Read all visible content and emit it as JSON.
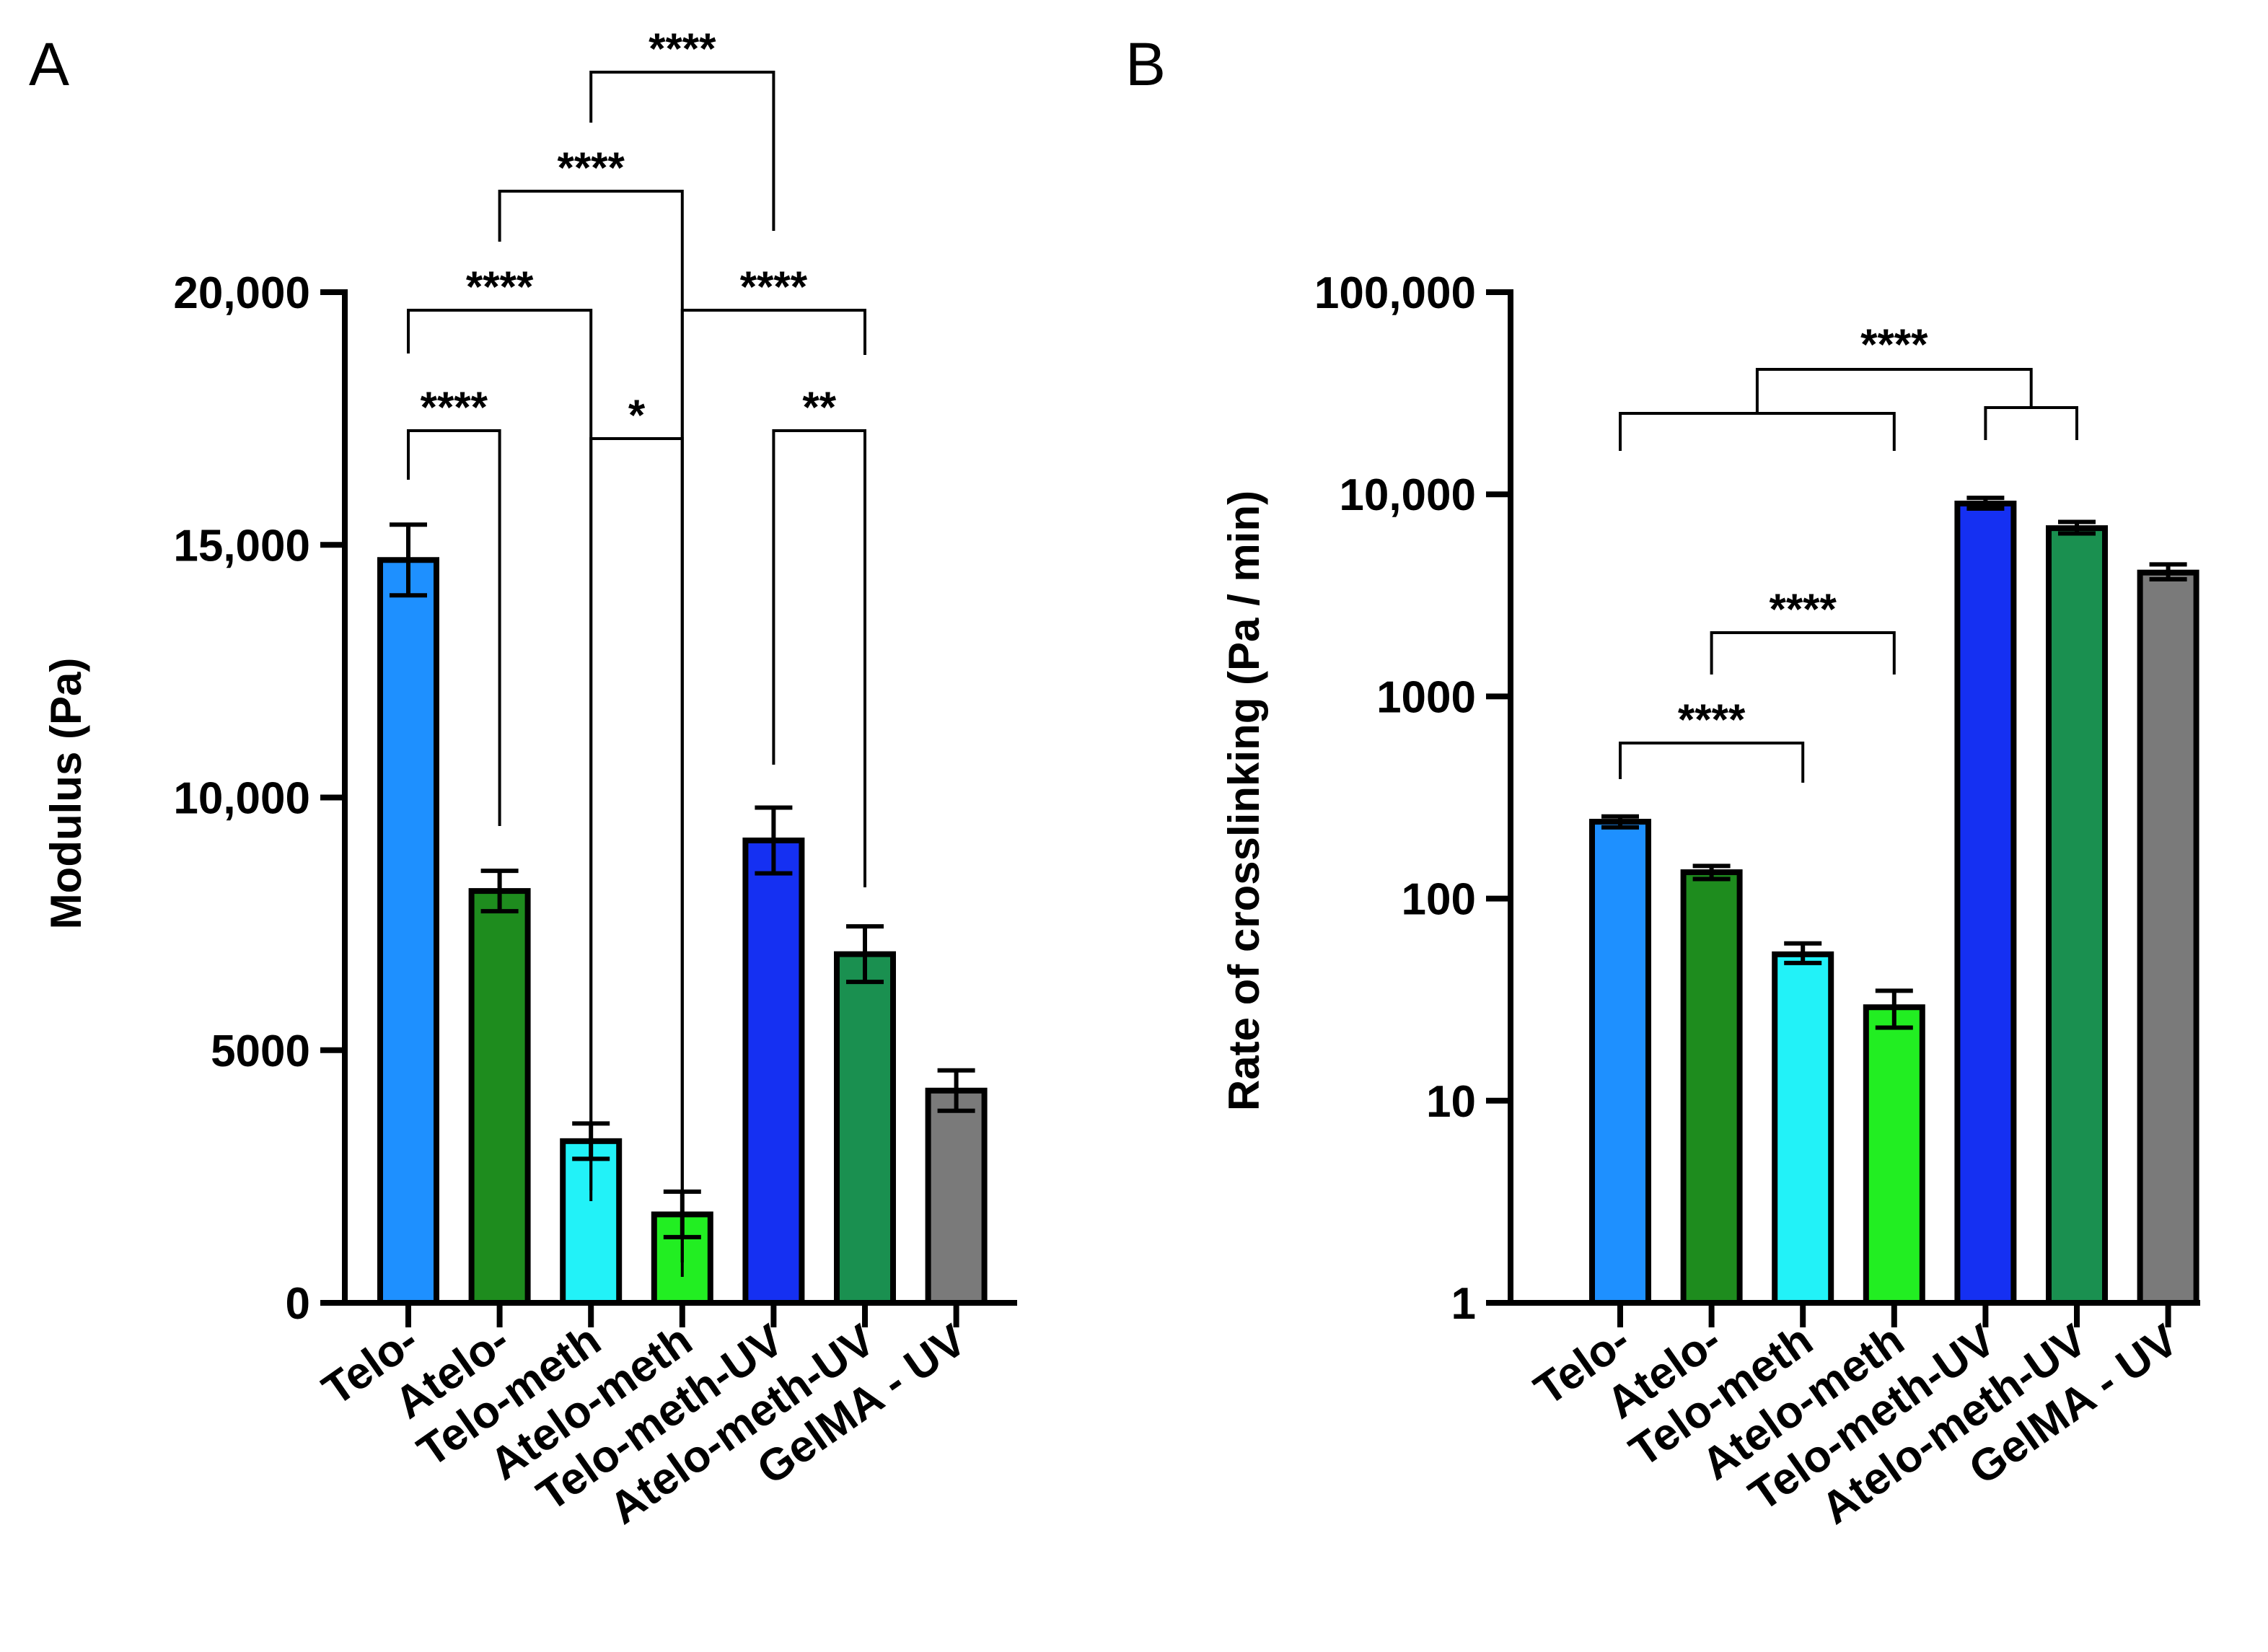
{
  "chart_data": [
    {
      "panel": "A",
      "type": "bar",
      "ylabel": "Modulus (Pa)",
      "scale": "linear",
      "ylim": [
        0,
        20000
      ],
      "yticks": [
        0,
        5000,
        10000,
        15000,
        20000
      ],
      "ytick_labels": [
        "0",
        "5000",
        "10,000",
        "15,000",
        "20,000"
      ],
      "categories": [
        "Telo-",
        "Atelo-",
        "Telo-meth",
        "Atelo-meth",
        "Telo-meth-UV",
        "Atelo-meth-UV",
        "GelMA - UV"
      ],
      "values": [
        14700,
        8150,
        3200,
        1750,
        9150,
        6900,
        4200
      ],
      "errors": [
        700,
        400,
        350,
        450,
        650,
        550,
        400
      ],
      "colors": [
        "#1E90FF",
        "#1E8C1E",
        "#22F2F8",
        "#22EE22",
        "#1530F2",
        "#1A9050",
        "#7A7A7A"
      ],
      "significance": [
        {
          "from": 0,
          "to": 1,
          "label": "****"
        },
        {
          "from": 0,
          "to": 2,
          "label": "****"
        },
        {
          "from": 2,
          "to": 3,
          "label": "*"
        },
        {
          "from": 1,
          "to": 3,
          "label": "****"
        },
        {
          "from": 2,
          "to": 4,
          "label": "****"
        },
        {
          "from": 3,
          "to": 5,
          "label": "****"
        },
        {
          "from": 4,
          "to": 5,
          "label": "**"
        }
      ]
    },
    {
      "panel": "B",
      "type": "bar",
      "ylabel": "Rate of crosslinking (Pa / min)",
      "scale": "log",
      "ylim": [
        1,
        100000
      ],
      "yticks": [
        1,
        10,
        100,
        1000,
        10000,
        100000
      ],
      "ytick_labels": [
        "1",
        "10",
        "100",
        "1000",
        "10,000",
        "100,000"
      ],
      "categories": [
        "Telo-",
        "Atelo-",
        "Telo-meth",
        "Atelo-meth",
        "Telo-meth-UV",
        "Atelo-meth-UV",
        "GelMA - UV"
      ],
      "values": [
        240,
        135,
        53,
        29,
        9000,
        6800,
        4100
      ],
      "error_high": [
        255,
        145,
        60,
        35,
        9600,
        7300,
        4500
      ],
      "error_low": [
        225,
        125,
        48,
        23,
        8500,
        6400,
        3800
      ],
      "colors": [
        "#1E90FF",
        "#1E8C1E",
        "#22F2F8",
        "#22EE22",
        "#1530F2",
        "#1A9050",
        "#7A7A7A"
      ],
      "significance": [
        {
          "from": 0,
          "to": 2,
          "label": "****"
        },
        {
          "from": 1,
          "to": 3,
          "label": "****"
        },
        {
          "group_a": [
            0,
            3
          ],
          "group_b": [
            4,
            5
          ],
          "label": "****"
        }
      ]
    }
  ]
}
